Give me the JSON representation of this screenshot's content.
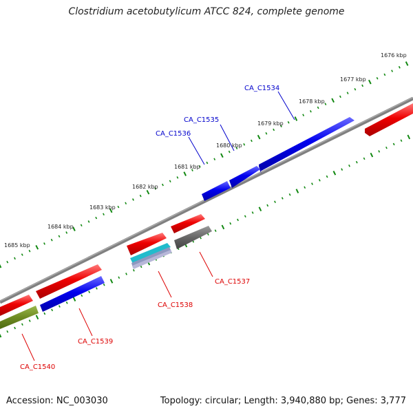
{
  "title": "Clostridium acetobutylicum ATCC 824, complete genome",
  "footer": {
    "accession": "Accession: NC_003030",
    "summary": "Topology: circular; Length: 3,940,880 bp; Genes: 3,777"
  },
  "colors": {
    "forward_gene": "#0000ee",
    "reverse_gene": "#ee0000",
    "other_gene_cyan": "#22bbcc",
    "other_gene_olive": "#6e8b22",
    "pseudo_gene": "#666666",
    "backbone": "#808080",
    "tick": "#118811",
    "label_forward": "#0000cc",
    "label_reverse": "#dd0000"
  },
  "scale_labels": [
    "1676 kbp",
    "1677 kbp",
    "1678 kbp",
    "1679 kbp",
    "1680 kbp",
    "1681 kbp",
    "1682 kbp",
    "1683 kbp",
    "1684 kbp",
    "1685 kbp"
  ],
  "gene_labels": {
    "forward": [
      "CA_C1534",
      "CA_C1535",
      "CA_C1536"
    ],
    "reverse": [
      "CA_C1537",
      "CA_C1538",
      "CA_C1539",
      "CA_C1540"
    ]
  }
}
